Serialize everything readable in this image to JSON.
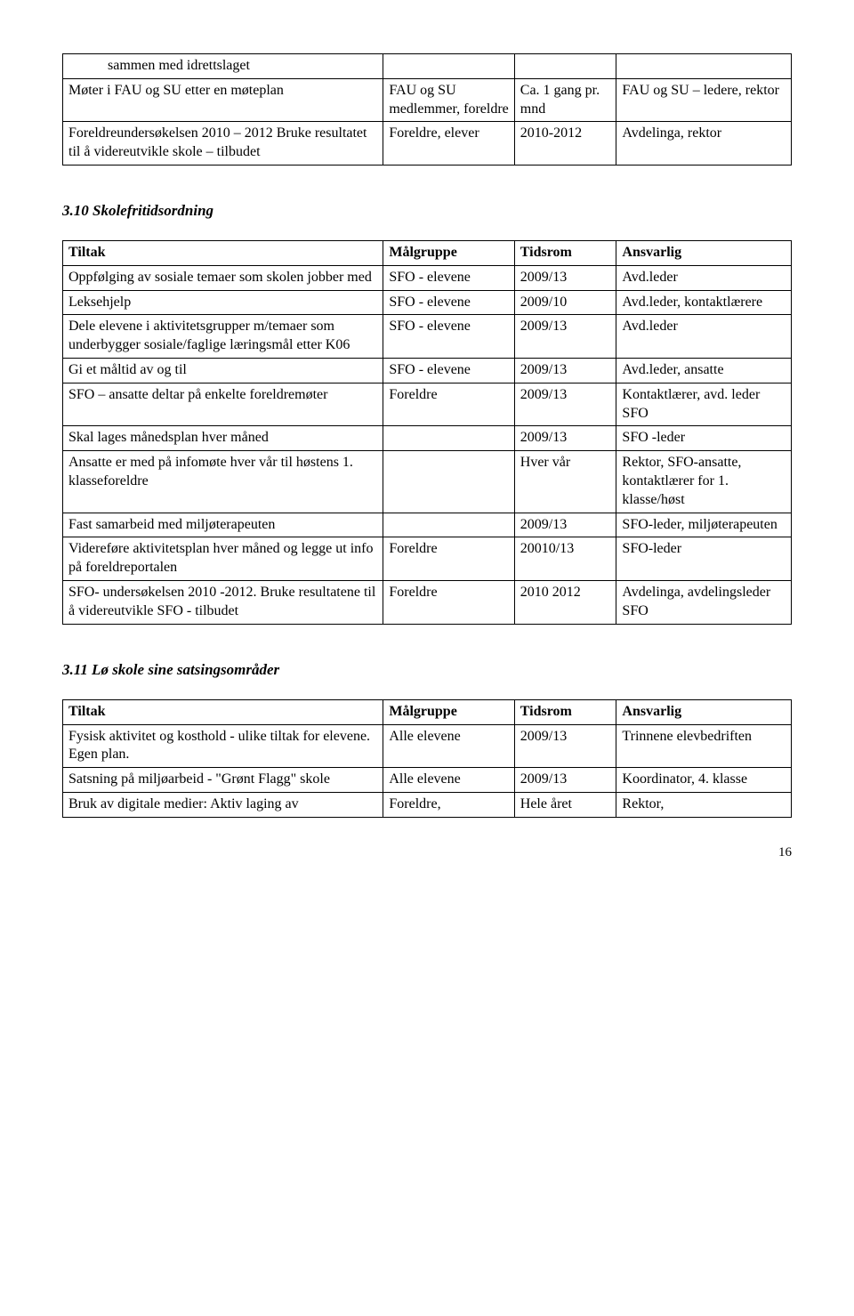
{
  "table1": {
    "rows": [
      [
        "sammen med idrettslaget",
        "",
        "",
        ""
      ],
      [
        "Møter i FAU og SU etter en møteplan",
        "FAU og SU medlemmer, foreldre",
        "Ca. 1 gang pr. mnd",
        "FAU og SU – ledere, rektor"
      ],
      [
        "Foreldreundersøkelsen 2010 – 2012 Bruke resultatet til å videreutvikle skole – tilbudet",
        "Foreldre, elever",
        "2010-2012",
        "Avdelinga, rektor"
      ]
    ]
  },
  "section310": {
    "heading": "3.10  Skolefritidsordning",
    "header": [
      "Tiltak",
      "Målgruppe",
      "Tidsrom",
      "Ansvarlig"
    ],
    "rows": [
      [
        "Oppfølging av sosiale temaer som skolen jobber med",
        "SFO - elevene",
        "2009/13",
        "Avd.leder"
      ],
      [
        "Leksehjelp",
        "SFO - elevene",
        "2009/10",
        "Avd.leder, kontaktlærere"
      ],
      [
        "Dele elevene i aktivitetsgrupper m/temaer som underbygger sosiale/faglige læringsmål etter K06",
        "SFO - elevene",
        "2009/13",
        "Avd.leder"
      ],
      [
        "Gi et måltid av og til",
        "SFO - elevene",
        "2009/13",
        "Avd.leder, ansatte"
      ],
      [
        "SFO – ansatte deltar på enkelte foreldremøter",
        "Foreldre",
        "2009/13",
        "Kontaktlærer, avd. leder SFO"
      ],
      [
        "Skal lages månedsplan hver måned",
        "",
        "2009/13",
        "SFO -leder"
      ],
      [
        "Ansatte er med på infomøte hver vår til høstens 1. klasseforeldre",
        "",
        "Hver vår",
        "Rektor, SFO-ansatte, kontaktlærer for 1. klasse/høst"
      ],
      [
        "Fast samarbeid med miljøterapeuten",
        "",
        "2009/13",
        "SFO-leder, miljøterapeuten"
      ],
      [
        "Videreføre aktivitetsplan hver måned og legge ut info på foreldreportalen",
        "Foreldre",
        "20010/13",
        "SFO-leder"
      ],
      [
        "SFO- undersøkelsen 2010 -2012. Bruke resultatene til å videreutvikle SFO - tilbudet",
        "Foreldre",
        "2010 2012",
        "Avdelinga, avdelingsleder SFO"
      ]
    ]
  },
  "section311": {
    "heading": "3.11  Lø skole sine satsingsområder",
    "header": [
      "Tiltak",
      "Målgruppe",
      "Tidsrom",
      "Ansvarlig"
    ],
    "rows": [
      [
        "Fysisk aktivitet og kosthold - ulike tiltak for elevene. Egen plan.",
        "Alle elevene",
        "2009/13",
        "Trinnene elevbedriften"
      ],
      [
        "Satsning på miljøarbeid - \"Grønt Flagg\" skole",
        "Alle elevene",
        "2009/13",
        "Koordinator, 4. klasse"
      ],
      [
        "Bruk av digitale medier: Aktiv laging av",
        "Foreldre,",
        "Hele året",
        "Rektor,"
      ]
    ]
  },
  "pageNumber": "16"
}
